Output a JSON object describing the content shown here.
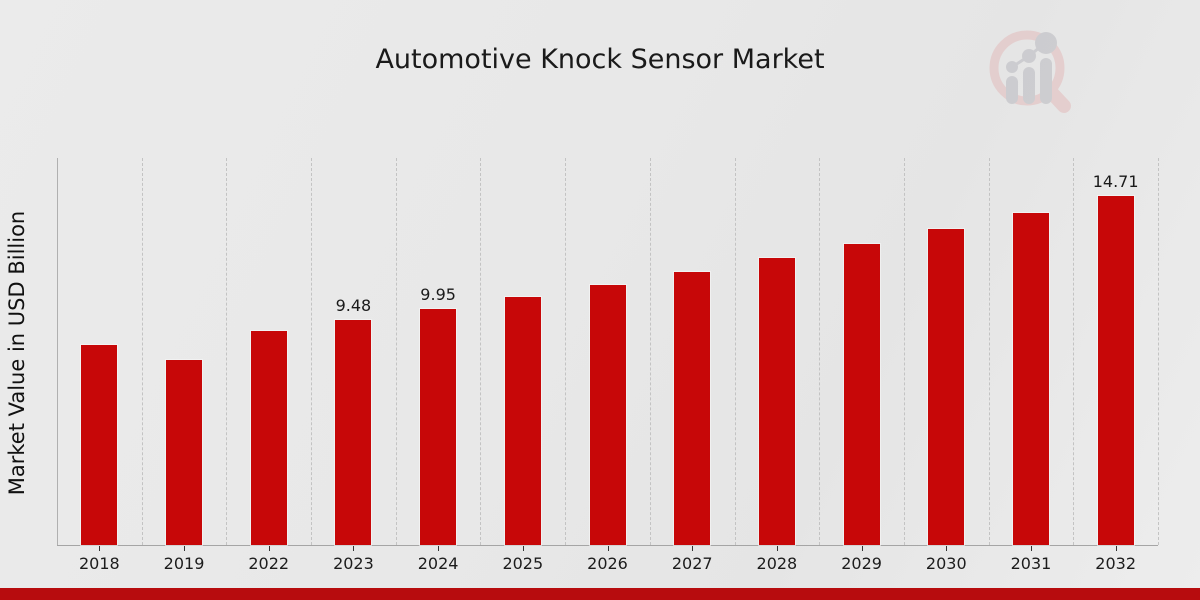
{
  "chart_data": {
    "type": "bar",
    "title": "Automotive Knock Sensor Market",
    "ylabel": "Market Value in USD Billion",
    "xlabel": "",
    "categories": [
      "2018",
      "2019",
      "2022",
      "2023",
      "2024",
      "2025",
      "2026",
      "2027",
      "2028",
      "2029",
      "2030",
      "2031",
      "2032"
    ],
    "values": [
      8.45,
      7.81,
      9.03,
      9.48,
      9.95,
      10.45,
      10.97,
      11.52,
      12.1,
      12.7,
      13.34,
      14.01,
      14.71
    ],
    "visible_value_labels": {
      "2023": "9.48",
      "2024": "9.95",
      "2032": "14.71"
    },
    "ylim": [
      0,
      16.33
    ],
    "grid": "vertical-dashed",
    "legend": "none",
    "bar_color": "#c70708",
    "grid_color": "#c3c3c3",
    "axis_color": "#a5a5a5"
  },
  "branding": {
    "footer_color": "#b70c0e",
    "logo_name": "market-research-magnifier-logo",
    "logo_ring_color": "#e3bcbc",
    "logo_glyph_color": "#b9b9bf"
  }
}
